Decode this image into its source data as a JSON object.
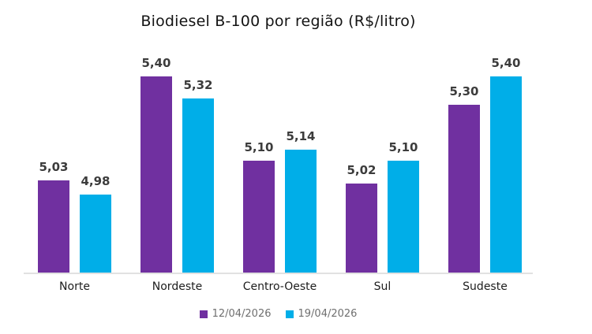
{
  "chart_data": {
    "type": "bar",
    "title": "Biodiesel B-100 por região (R$/litro)",
    "categories": [
      "Norte",
      "Nordeste",
      "Centro-Oeste",
      "Sul",
      "Sudeste"
    ],
    "series": [
      {
        "name": "12/04/2026",
        "color": "#7030a0",
        "values": [
          5.03,
          5.4,
          5.1,
          5.02,
          5.3
        ],
        "labels": [
          "5,03",
          "5,40",
          "5,10",
          "5,02",
          "5,30"
        ]
      },
      {
        "name": "19/04/2026",
        "color": "#00aee8",
        "values": [
          4.98,
          5.32,
          5.14,
          5.1,
          5.4
        ],
        "labels": [
          "4,98",
          "5,32",
          "5,14",
          "5,10",
          "5,40"
        ]
      }
    ],
    "xlabel": "",
    "ylabel": "",
    "ylim": [
      4.7,
      5.45
    ],
    "grid": false,
    "legend_position": "bottom",
    "value_labels_shown": true
  },
  "colors": {
    "background": "#ffffff",
    "axis_line": "#e1e1e1",
    "title_text": "#141414",
    "value_label_text": "#3c3c3c",
    "category_text": "#1d1d1d",
    "legend_text": "#6f6f6f",
    "series_purple": "#7030a0",
    "series_cyan": "#00aee8"
  }
}
